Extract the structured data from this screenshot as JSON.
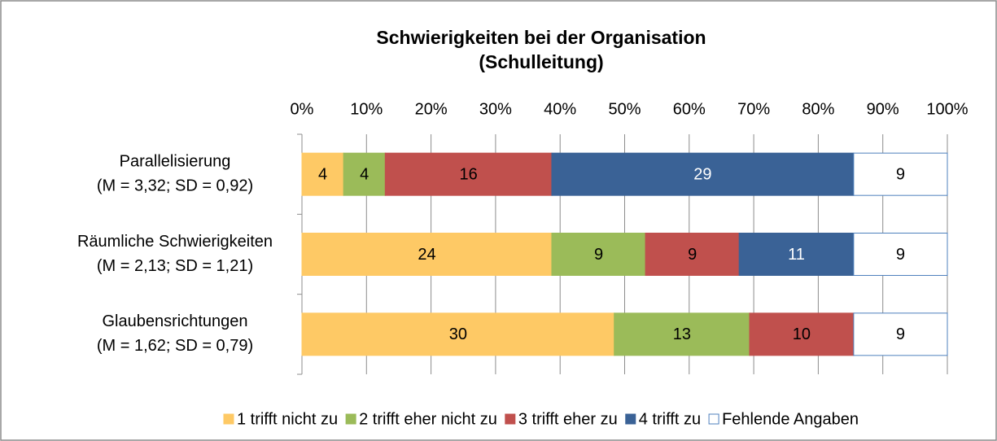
{
  "chart_data": {
    "type": "bar",
    "orientation": "horizontal",
    "stacking": "percent",
    "title": [
      "Schwierigkeiten bei der Organisation",
      "(Schulleitung)"
    ],
    "categories": [
      [
        "Parallelisierung",
        "(M = 3,32; SD = 0,92)"
      ],
      [
        "Räumliche Schwierigkeiten",
        "(M = 2,13; SD = 1,21)"
      ],
      [
        "Glaubensrichtungen",
        "(M = 1,62; SD = 0,79)"
      ]
    ],
    "series": [
      {
        "name": "1 trifft nicht zu",
        "color": "#fec965",
        "border": "#fec965",
        "label_color": "#000000",
        "values": [
          4,
          24,
          30
        ]
      },
      {
        "name": "2 trifft eher nicht zu",
        "color": "#9bbb59",
        "border": "#9bbb59",
        "label_color": "#000000",
        "values": [
          4,
          9,
          13
        ]
      },
      {
        "name": "3 trifft eher zu",
        "color": "#c0504d",
        "border": "#c0504d",
        "label_color": "#000000",
        "values": [
          16,
          9,
          10
        ]
      },
      {
        "name": "4 trifft zu",
        "color": "#3a6296",
        "border": "#3a6296",
        "label_color": "#ffffff",
        "values": [
          29,
          11,
          null
        ]
      },
      {
        "name": "Fehlende Angaben",
        "color": "#ffffff",
        "border": "#4f81bd",
        "label_color": "#000000",
        "values": [
          9,
          9,
          9
        ]
      }
    ],
    "xlim": [
      0,
      100
    ],
    "xticks": [
      {
        "value": 0,
        "label": "0%"
      },
      {
        "value": 10,
        "label": "10%"
      },
      {
        "value": 20,
        "label": "20%"
      },
      {
        "value": 30,
        "label": "30%"
      },
      {
        "value": 40,
        "label": "40%"
      },
      {
        "value": 50,
        "label": "50%"
      },
      {
        "value": 60,
        "label": "60%"
      },
      {
        "value": 70,
        "label": "70%"
      },
      {
        "value": 80,
        "label": "80%"
      },
      {
        "value": 90,
        "label": "90%"
      },
      {
        "value": 100,
        "label": "100%"
      }
    ],
    "grid": true,
    "legend": "bottom"
  }
}
